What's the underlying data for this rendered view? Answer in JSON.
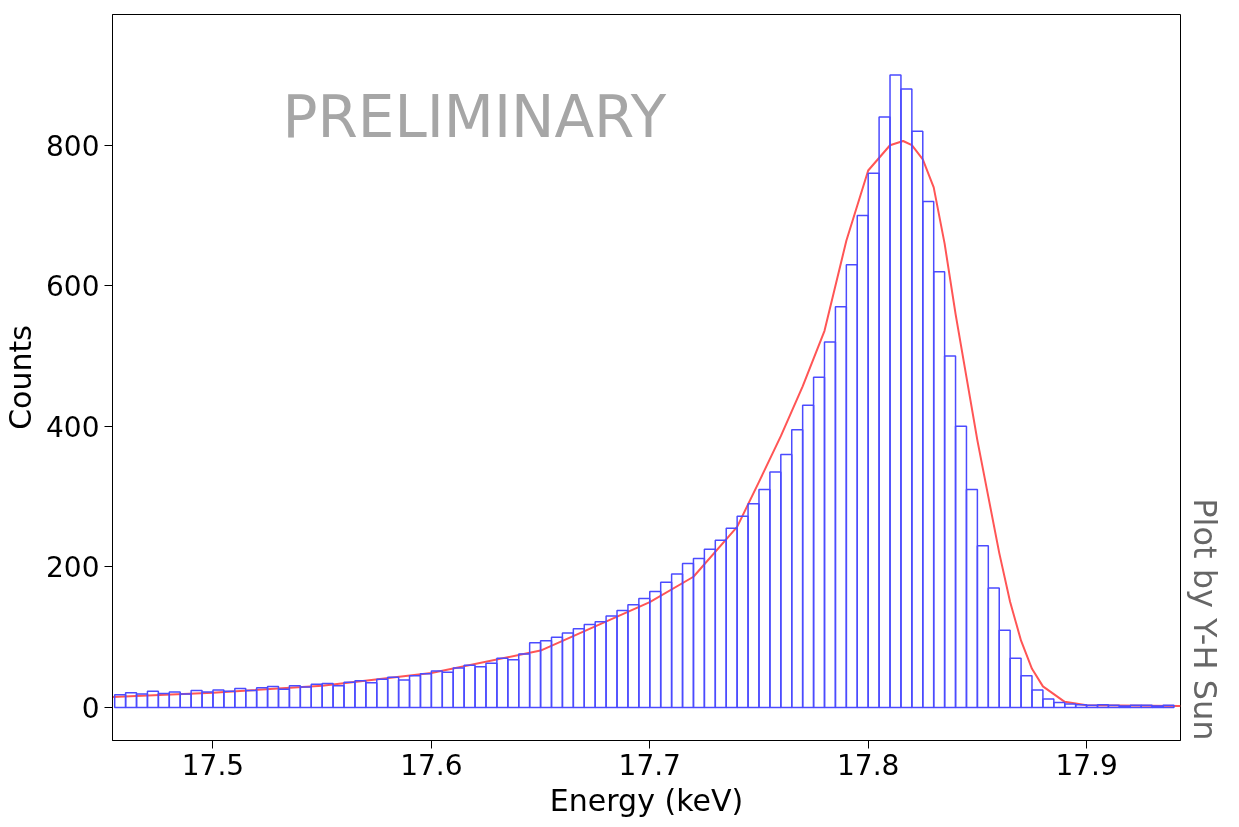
{
  "chart_data": {
    "type": "histogram",
    "xlabel": "Energy (keV)",
    "ylabel": "Counts",
    "annotations": [
      "PRELIMINARY",
      "Plot by Y-H Sun"
    ],
    "bins": [
      17.455,
      17.46,
      17.465,
      17.47,
      17.475,
      17.48,
      17.485,
      17.49,
      17.495,
      17.5,
      17.505,
      17.51,
      17.515,
      17.52,
      17.525,
      17.53,
      17.535,
      17.54,
      17.545,
      17.55,
      17.555,
      17.56,
      17.565,
      17.57,
      17.575,
      17.58,
      17.585,
      17.59,
      17.595,
      17.6,
      17.605,
      17.61,
      17.615,
      17.62,
      17.625,
      17.63,
      17.635,
      17.64,
      17.645,
      17.65,
      17.655,
      17.66,
      17.665,
      17.67,
      17.675,
      17.68,
      17.685,
      17.69,
      17.695,
      17.7,
      17.705,
      17.71,
      17.715,
      17.72,
      17.725,
      17.73,
      17.735,
      17.74,
      17.745,
      17.75,
      17.755,
      17.76,
      17.765,
      17.77,
      17.775,
      17.78,
      17.785,
      17.79,
      17.795,
      17.8,
      17.805,
      17.81,
      17.815,
      17.82,
      17.825,
      17.83,
      17.835,
      17.84,
      17.845,
      17.85,
      17.855,
      17.86,
      17.865,
      17.87,
      17.875,
      17.88,
      17.885,
      17.89,
      17.895,
      17.9,
      17.905,
      17.91,
      17.915,
      17.92,
      17.925,
      17.93,
      17.935,
      17.94
    ],
    "values": [
      18,
      21,
      19,
      23,
      20,
      22,
      19,
      24,
      22,
      25,
      23,
      27,
      24,
      28,
      30,
      26,
      31,
      29,
      33,
      34,
      31,
      36,
      38,
      35,
      40,
      43,
      39,
      45,
      48,
      52,
      50,
      56,
      60,
      58,
      63,
      70,
      68,
      76,
      92,
      95,
      100,
      106,
      112,
      118,
      122,
      130,
      138,
      146,
      155,
      165,
      178,
      190,
      205,
      212,
      225,
      238,
      255,
      272,
      290,
      310,
      335,
      360,
      395,
      430,
      470,
      520,
      570,
      630,
      700,
      760,
      840,
      900,
      880,
      820,
      720,
      620,
      500,
      400,
      310,
      230,
      170,
      110,
      70,
      45,
      25,
      12,
      7,
      5,
      4,
      3,
      4,
      3,
      2,
      3,
      3,
      2,
      3
    ],
    "color": "#4b4bff",
    "series": [
      {
        "type": "line",
        "color": "#ff5555",
        "x": [
          17.454,
          17.5,
          17.55,
          17.6,
          17.65,
          17.7,
          17.72,
          17.74,
          17.75,
          17.76,
          17.77,
          17.78,
          17.79,
          17.8,
          17.81,
          17.816,
          17.82,
          17.825,
          17.83,
          17.835,
          17.84,
          17.845,
          17.85,
          17.855,
          17.86,
          17.865,
          17.87,
          17.875,
          17.88,
          17.89,
          17.9,
          17.943
        ],
        "values": [
          15,
          21,
          31,
          49,
          81,
          150,
          186,
          257,
          321,
          386,
          457,
          536,
          664,
          764,
          800,
          806,
          800,
          780,
          740,
          660,
          560,
          470,
          380,
          300,
          220,
          150,
          95,
          55,
          30,
          8,
          3,
          2
        ]
      }
    ],
    "xlim": [
      17.454,
      17.943
    ],
    "ylim": [
      -47,
      986
    ],
    "xticks": [
      17.5,
      17.6,
      17.7,
      17.8,
      17.9
    ],
    "yticks": [
      0,
      200,
      400,
      600,
      800
    ],
    "grid": false
  }
}
